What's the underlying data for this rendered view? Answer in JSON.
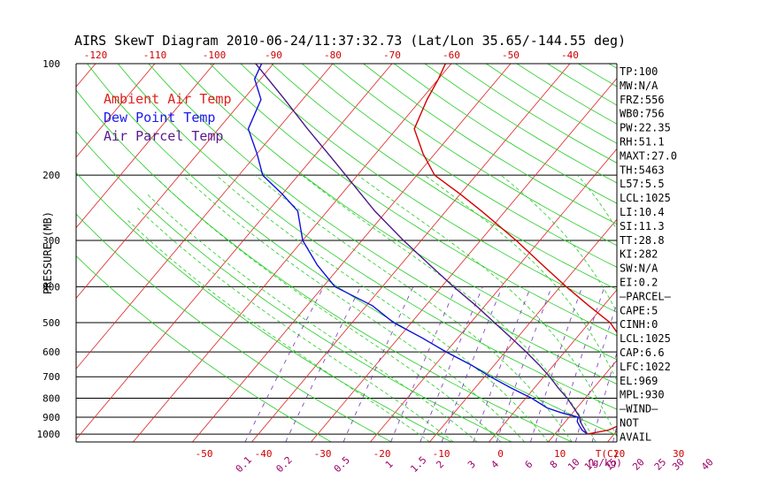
{
  "chart_data": {
    "type": "line",
    "title": "AIRS SkewT Diagram 2010-06-24/11:37:32.73 (Lat/Lon 35.65/-144.55 deg)",
    "ylabel": "PRESSURE (MB)",
    "y_scale": "log",
    "ylim": [
      1050,
      100
    ],
    "pressure_ticks": [
      "100",
      "200",
      "300",
      "400",
      "500",
      "600",
      "700",
      "800",
      "900",
      "1000"
    ],
    "pressure_tick_values": [
      100,
      200,
      300,
      400,
      500,
      600,
      700,
      800,
      900,
      1000
    ],
    "top_temp_ticks": [
      "-120",
      "-110",
      "-100",
      "-90",
      "-80",
      "-70",
      "-60",
      "-50",
      "-40"
    ],
    "bottom_temp_ticks": [
      "-50",
      "-40",
      "-30",
      "-20",
      "-10",
      "0",
      "10",
      "20",
      "30"
    ],
    "temp_unit_label": "T(C)",
    "mixing_ratio_ticks": [
      "0.1",
      "0.2",
      "0.5",
      "1",
      "1.5",
      "2",
      "3",
      "4",
      "6",
      "8",
      "10",
      "12",
      "15",
      "20",
      "25",
      "30",
      "40"
    ],
    "mixing_ratio_unit_label": "(g/kg)",
    "legend": [
      {
        "label": "Ambient Air Temp",
        "color": "#e02020"
      },
      {
        "label": "Dew Point Temp",
        "color": "#1a1aee"
      },
      {
        "label": "Air Parcel Temp",
        "color": "#5a1a8c"
      }
    ],
    "series": [
      {
        "name": "Ambient Air Temp",
        "color": "#d40000",
        "points": [
          [
            1000,
            15.5
          ],
          [
            975,
            18.5
          ],
          [
            950,
            19.5
          ],
          [
            925,
            19.8
          ],
          [
            900,
            20
          ],
          [
            850,
            19.7
          ],
          [
            800,
            19
          ],
          [
            750,
            18
          ],
          [
            700,
            16.5
          ],
          [
            650,
            14
          ],
          [
            600,
            11
          ],
          [
            550,
            7.5
          ],
          [
            500,
            3.5
          ],
          [
            450,
            -2.5
          ],
          [
            400,
            -9
          ],
          [
            350,
            -16
          ],
          [
            300,
            -24
          ],
          [
            250,
            -34
          ],
          [
            225,
            -40
          ],
          [
            200,
            -47
          ],
          [
            175,
            -52
          ],
          [
            150,
            -57
          ],
          [
            125,
            -59
          ],
          [
            110,
            -60
          ],
          [
            100,
            -61
          ]
        ]
      },
      {
        "name": "Dew Point Temp",
        "color": "#1010dd",
        "points": [
          [
            1000,
            15.5
          ],
          [
            975,
            14
          ],
          [
            950,
            13
          ],
          [
            925,
            12
          ],
          [
            900,
            11.5
          ],
          [
            875,
            8
          ],
          [
            850,
            5
          ],
          [
            800,
            1
          ],
          [
            750,
            -4
          ],
          [
            700,
            -9
          ],
          [
            650,
            -14
          ],
          [
            600,
            -20
          ],
          [
            550,
            -26
          ],
          [
            500,
            -33
          ],
          [
            450,
            -39
          ],
          [
            400,
            -48
          ],
          [
            350,
            -54
          ],
          [
            300,
            -60
          ],
          [
            250,
            -65
          ],
          [
            225,
            -70
          ],
          [
            200,
            -76
          ],
          [
            175,
            -80
          ],
          [
            150,
            -85
          ],
          [
            125,
            -87
          ],
          [
            110,
            -91
          ],
          [
            100,
            -92
          ]
        ]
      },
      {
        "name": "Air Parcel Temp",
        "color": "#4b1a88",
        "points": [
          [
            1000,
            15.5
          ],
          [
            975,
            14.5
          ],
          [
            950,
            13.5
          ],
          [
            925,
            12.5
          ],
          [
            900,
            11.8
          ],
          [
            850,
            9.5
          ],
          [
            800,
            7
          ],
          [
            750,
            4
          ],
          [
            700,
            1
          ],
          [
            650,
            -2.5
          ],
          [
            600,
            -6.5
          ],
          [
            550,
            -11
          ],
          [
            500,
            -16
          ],
          [
            450,
            -21.5
          ],
          [
            400,
            -28
          ],
          [
            350,
            -35
          ],
          [
            300,
            -43
          ],
          [
            250,
            -52
          ],
          [
            200,
            -62
          ],
          [
            175,
            -68
          ],
          [
            150,
            -75
          ],
          [
            125,
            -83
          ],
          [
            100,
            -93
          ]
        ]
      }
    ],
    "indices": [
      "TP:100",
      "MW:N/A",
      "FRZ:556",
      "WB0:756",
      "PW:22.35",
      "RH:51.1",
      "MAXT:27.0",
      "TH:5463",
      "L57:5.5",
      "LCL:1025",
      "LI:10.4",
      "SI:11.3",
      "TT:28.8",
      "KI:282",
      "SW:N/A",
      "EI:0.2",
      "—PARCEL—",
      "CAPE:5",
      "CINH:0",
      "LCL:1025",
      "CAP:6.6",
      "LFC:1022",
      "EL:969",
      "MPL:930",
      "—WIND—",
      "NOT",
      "AVAIL"
    ],
    "grid": true
  }
}
